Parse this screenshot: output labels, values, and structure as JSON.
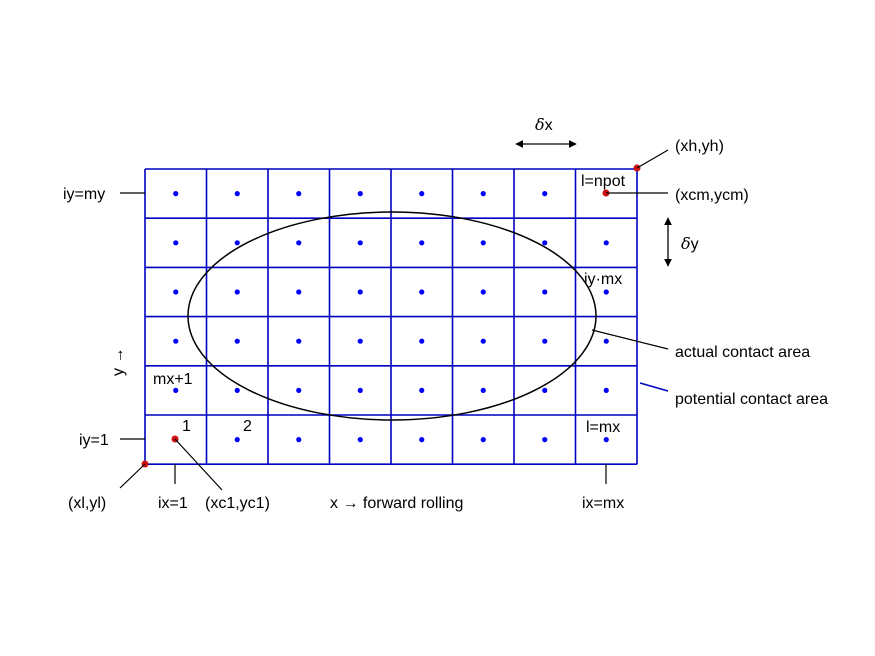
{
  "grid": {
    "columns": 8,
    "rows": 6
  },
  "colors": {
    "grid": "#0000c0",
    "dots": "#0000ff",
    "points": "#d01010",
    "ellipse": "#000000",
    "annotation": "#000000"
  },
  "labels": {
    "delta_x": "x",
    "delta_y": "y",
    "delta_symbol": "δ",
    "xh_yh": "(xh,yh)",
    "xcm_ycm": "(xcm,ycm)",
    "l_npot": "l=npot",
    "iy_my": "iy=my",
    "iy_1": "iy=1",
    "iy_mx": "iy·mx",
    "mx_plus_1": "mx+1",
    "cell_1": "1",
    "cell_2": "2",
    "l_mx": "l=mx",
    "y_arrow": "y →",
    "actual_contact": "actual contact area",
    "potential_contact": "potential contact area",
    "xl_yl": "(xl,yl)",
    "ix_1": "ix=1",
    "xc1_yc1": "(xc1,yc1)",
    "x_forward": "x → forward rolling",
    "ix_mx": "ix=mx"
  }
}
